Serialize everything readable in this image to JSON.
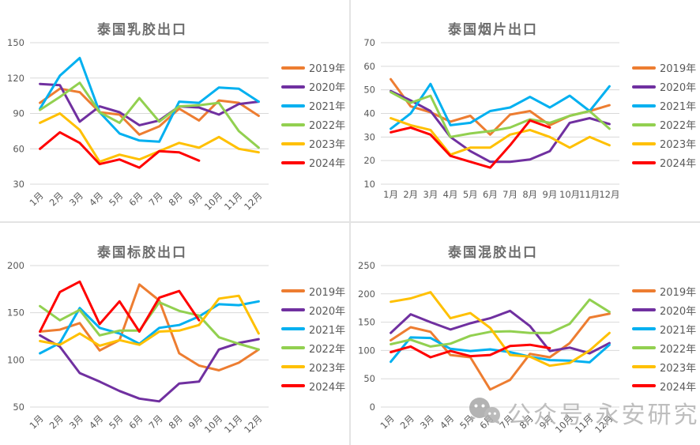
{
  "watermark": {
    "text": "公众号·永安研究",
    "icon": "wechat-icon",
    "color": "#b3b3b3"
  },
  "chart_data": [
    {
      "type": "line",
      "title": "泰国乳胶出口",
      "categories": [
        "1月",
        "2月",
        "3月",
        "4月",
        "5月",
        "6月",
        "7月",
        "8月",
        "9月",
        "10月",
        "11月",
        "12月"
      ],
      "ylim": [
        30,
        150
      ],
      "yticks": [
        30,
        60,
        90,
        120,
        150
      ],
      "grid": true,
      "legend_position": "right",
      "x_labels_rotated": true,
      "series": [
        {
          "name": "2019年",
          "color": "#ED7D31",
          "values": [
            99,
            111,
            108,
            91,
            89,
            72,
            79,
            94,
            84,
            101,
            99,
            88
          ]
        },
        {
          "name": "2020年",
          "color": "#7030A0",
          "values": [
            115,
            114,
            83,
            96,
            91,
            80,
            84,
            96,
            95,
            89,
            98,
            100
          ]
        },
        {
          "name": "2021年",
          "color": "#00B0F0",
          "values": [
            94,
            122,
            137,
            91,
            73,
            67,
            66,
            100,
            99,
            112,
            111,
            100
          ]
        },
        {
          "name": "2022年",
          "color": "#92D050",
          "values": [
            93,
            104,
            116,
            91,
            82,
            103,
            83,
            96,
            97,
            99,
            75,
            61
          ]
        },
        {
          "name": "2023年",
          "color": "#FFC000",
          "values": [
            82,
            90,
            76,
            49,
            55,
            51,
            58,
            65,
            61,
            70,
            60,
            57
          ]
        },
        {
          "name": "2024年",
          "color": "#FF0000",
          "values": [
            60,
            74,
            65,
            47,
            51,
            44,
            58,
            57,
            50
          ]
        }
      ]
    },
    {
      "type": "line",
      "title": "泰国烟片出口",
      "categories": [
        "1月",
        "2月",
        "3月",
        "4月",
        "5月",
        "6月",
        "7月",
        "8月",
        "9月",
        "10月",
        "11月",
        "12月"
      ],
      "ylim": [
        10,
        70
      ],
      "yticks": [
        10,
        20,
        30,
        40,
        50,
        60,
        70
      ],
      "grid": true,
      "legend_position": "right",
      "x_labels_rotated": false,
      "series": [
        {
          "name": "2019年",
          "color": "#ED7D31",
          "values": [
            54.5,
            43,
            40.5,
            36.5,
            39,
            31,
            39.5,
            41,
            35,
            39,
            41,
            43.5
          ]
        },
        {
          "name": "2020年",
          "color": "#7030A0",
          "values": [
            49.5,
            45.5,
            41,
            30,
            24,
            19.5,
            19.5,
            20.5,
            24,
            36,
            38,
            35.5
          ]
        },
        {
          "name": "2021年",
          "color": "#00B0F0",
          "values": [
            33.5,
            40,
            52.5,
            35,
            36,
            41,
            42.5,
            47,
            42.5,
            47.5,
            41,
            51.5
          ]
        },
        {
          "name": "2022年",
          "color": "#92D050",
          "values": [
            49,
            44.5,
            47.5,
            30,
            31.5,
            32.5,
            34,
            37.5,
            36,
            39,
            41,
            33.5
          ]
        },
        {
          "name": "2023年",
          "color": "#FFC000",
          "values": [
            38,
            35,
            33,
            22.5,
            25.5,
            25.5,
            31,
            33,
            30,
            25.5,
            30,
            26.5
          ]
        },
        {
          "name": "2024年",
          "color": "#FF0000",
          "values": [
            32,
            34,
            31,
            22,
            19.5,
            17,
            26.5,
            37,
            34
          ]
        }
      ]
    },
    {
      "type": "line",
      "title": "泰国标胶出口",
      "categories": [
        "1月",
        "2月",
        "3月",
        "4月",
        "5月",
        "6月",
        "7月",
        "8月",
        "9月",
        "10月",
        "11月",
        "12月"
      ],
      "ylim": [
        50,
        200
      ],
      "yticks": [
        50,
        100,
        150,
        200
      ],
      "grid": true,
      "legend_position": "right",
      "x_labels_rotated": true,
      "series": [
        {
          "name": "2019年",
          "color": "#ED7D31",
          "values": [
            130,
            132,
            139,
            110,
            121,
            180,
            163,
            107,
            94,
            89,
            97,
            111
          ]
        },
        {
          "name": "2020年",
          "color": "#7030A0",
          "values": [
            126,
            114,
            86,
            77,
            67,
            59,
            56,
            75,
            77,
            111,
            118,
            122
          ]
        },
        {
          "name": "2021年",
          "color": "#00B0F0",
          "values": [
            107,
            118,
            155,
            134,
            128,
            117,
            134,
            137,
            146,
            159,
            158,
            162
          ]
        },
        {
          "name": "2022年",
          "color": "#92D050",
          "values": [
            157,
            142,
            153,
            126,
            131,
            131,
            161,
            152,
            147,
            124,
            117,
            111
          ]
        },
        {
          "name": "2023年",
          "color": "#FFC000",
          "values": [
            120,
            116,
            128,
            115,
            121,
            116,
            130,
            131,
            137,
            165,
            168,
            128
          ]
        },
        {
          "name": "2024年",
          "color": "#FF0000",
          "values": [
            130,
            172,
            183,
            138,
            162,
            130,
            166,
            173,
            142
          ]
        }
      ]
    },
    {
      "type": "line",
      "title": "泰国混胶出口",
      "categories": [
        "1月",
        "2月",
        "3月",
        "4月",
        "5月",
        "6月",
        "7月",
        "8月",
        "9月",
        "10月",
        "11月",
        "12月"
      ],
      "ylim": [
        0,
        250
      ],
      "yticks": [
        0,
        50,
        100,
        150,
        200,
        250
      ],
      "grid": true,
      "legend_position": "right",
      "x_labels_rotated": true,
      "series": [
        {
          "name": "2019年",
          "color": "#ED7D31",
          "values": [
            118,
            141,
            133,
            92,
            88,
            31,
            48,
            94,
            88,
            113,
            158,
            165
          ]
        },
        {
          "name": "2020年",
          "color": "#7030A0",
          "values": [
            131,
            164,
            150,
            137,
            148,
            157,
            170,
            143,
            99,
            105,
            95,
            113
          ]
        },
        {
          "name": "2021年",
          "color": "#00B0F0",
          "values": [
            80,
            123,
            122,
            103,
            99,
            102,
            97,
            89,
            83,
            82,
            79,
            110
          ]
        },
        {
          "name": "2022年",
          "color": "#92D050",
          "values": [
            111,
            119,
            107,
            112,
            126,
            133,
            134,
            131,
            131,
            147,
            190,
            168
          ]
        },
        {
          "name": "2023年",
          "color": "#FFC000",
          "values": [
            186,
            192,
            203,
            157,
            166,
            140,
            92,
            89,
            73,
            78,
            100,
            131
          ]
        },
        {
          "name": "2024年",
          "color": "#FF0000",
          "values": [
            97,
            107,
            88,
            99,
            90,
            92,
            108,
            110,
            104
          ]
        }
      ]
    }
  ]
}
